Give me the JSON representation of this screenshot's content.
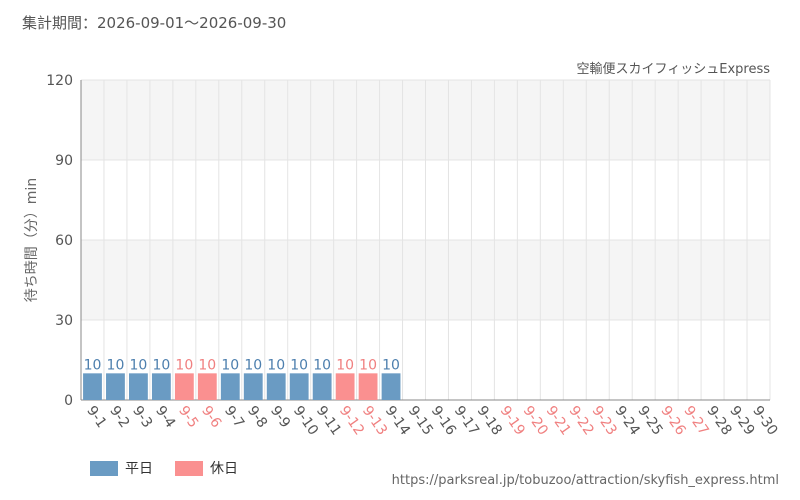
{
  "header": {
    "period": "集計期間：2026-09-01～2026-09-30",
    "attraction": "空輸便スカイフィッシュExpress"
  },
  "footer": {
    "url": "https://parksreal.jp/tobuzoo/attraction/skyfish_express.html"
  },
  "colors": {
    "weekday": "#6a9bc3",
    "holiday": "#fa9090",
    "weekday_label": "#4d7fae",
    "holiday_label": "#f08080",
    "band": "#f5f5f5",
    "axis_text": "#555555"
  },
  "legend": [
    {
      "label": "平日",
      "color": "#6a9bc3"
    },
    {
      "label": "休日",
      "color": "#fa9090"
    }
  ],
  "chart_data": {
    "type": "bar",
    "title": "",
    "xlabel": "",
    "ylabel": "待ち時間（分）min",
    "ylim": [
      0,
      120
    ],
    "yticks": [
      0,
      30,
      60,
      90,
      120
    ],
    "grid": true,
    "legend_position": "bottom-left",
    "categories": [
      "9-1",
      "9-2",
      "9-3",
      "9-4",
      "9-5",
      "9-6",
      "9-7",
      "9-8",
      "9-9",
      "9-10",
      "9-11",
      "9-12",
      "9-13",
      "9-14",
      "9-15",
      "9-16",
      "9-17",
      "9-18",
      "9-19",
      "9-20",
      "9-21",
      "9-22",
      "9-23",
      "9-24",
      "9-25",
      "9-26",
      "9-27",
      "9-28",
      "9-29",
      "9-30"
    ],
    "values": [
      10,
      10,
      10,
      10,
      10,
      10,
      10,
      10,
      10,
      10,
      10,
      10,
      10,
      10,
      null,
      null,
      null,
      null,
      null,
      null,
      null,
      null,
      null,
      null,
      null,
      null,
      null,
      null,
      null,
      null
    ],
    "day_type": [
      "weekday",
      "weekday",
      "weekday",
      "weekday",
      "holiday",
      "holiday",
      "weekday",
      "weekday",
      "weekday",
      "weekday",
      "weekday",
      "holiday",
      "holiday",
      "weekday",
      "weekday",
      "weekday",
      "weekday",
      "weekday",
      "holiday",
      "holiday",
      "holiday",
      "holiday",
      "holiday",
      "weekday",
      "weekday",
      "holiday",
      "holiday",
      "weekday",
      "weekday",
      "weekday"
    ],
    "series": [
      {
        "name": "平日",
        "color": "#6a9bc3"
      },
      {
        "name": "休日",
        "color": "#fa9090"
      }
    ]
  }
}
